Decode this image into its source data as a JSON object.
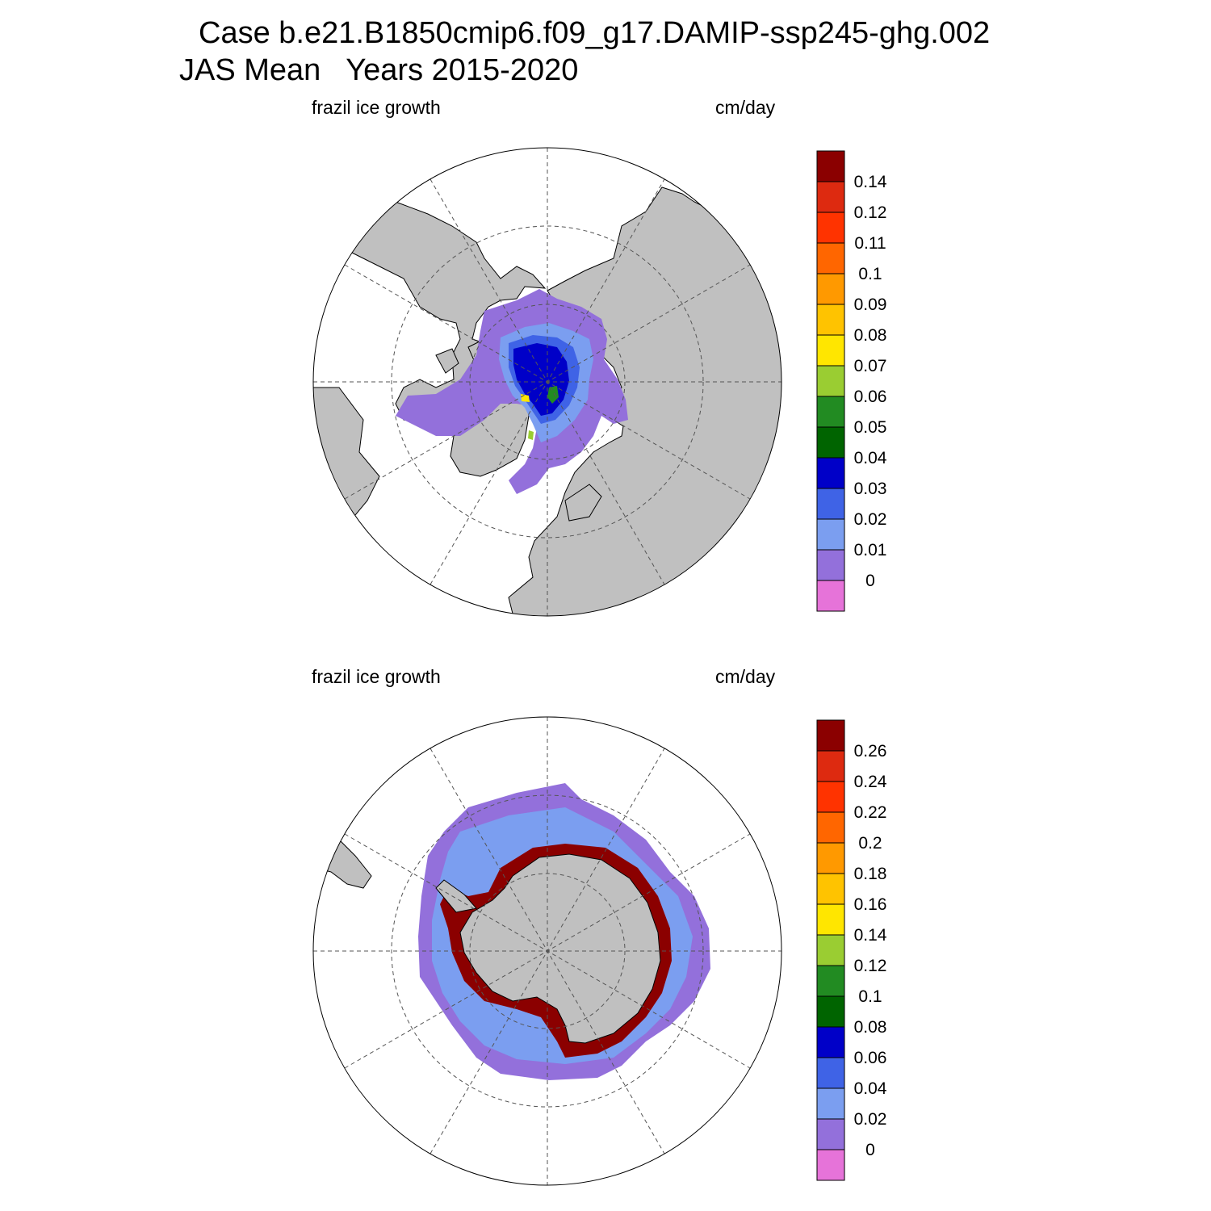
{
  "title_line1": "Case b.e21.B1850cmip6.f09_g17.DAMIP-ssp245-ghg.002",
  "title_line2": "JAS Mean   Years 2015-2020",
  "colors": {
    "land": "#c0c0c0",
    "ocean": "#ffffff",
    "grid": "#555555",
    "scale": [
      "#e673d9",
      "#9370db",
      "#7b9ef0",
      "#3f63e6",
      "#0000c8",
      "#006400",
      "#228b22",
      "#9acd32",
      "#ffe600",
      "#ffc300",
      "#ff9900",
      "#ff6600",
      "#ff3300",
      "#dd2a10",
      "#8b0000"
    ]
  },
  "panels": [
    {
      "id": "north",
      "left_label": "frazil ice growth",
      "right_label": "cm/day",
      "colorbar_labels": [
        "0.14",
        "0.12",
        "0.11",
        "0.1",
        "0.09",
        "0.08",
        "0.07",
        "0.06",
        "0.05",
        "0.04",
        "0.03",
        "0.02",
        "0.01",
        "0"
      ]
    },
    {
      "id": "south",
      "left_label": "frazil ice growth",
      "right_label": "cm/day",
      "colorbar_labels": [
        "0.26",
        "0.24",
        "0.22",
        "0.2",
        "0.18",
        "0.16",
        "0.14",
        "0.12",
        "0.1",
        "0.08",
        "0.06",
        "0.04",
        "0.02",
        "0"
      ]
    }
  ]
}
